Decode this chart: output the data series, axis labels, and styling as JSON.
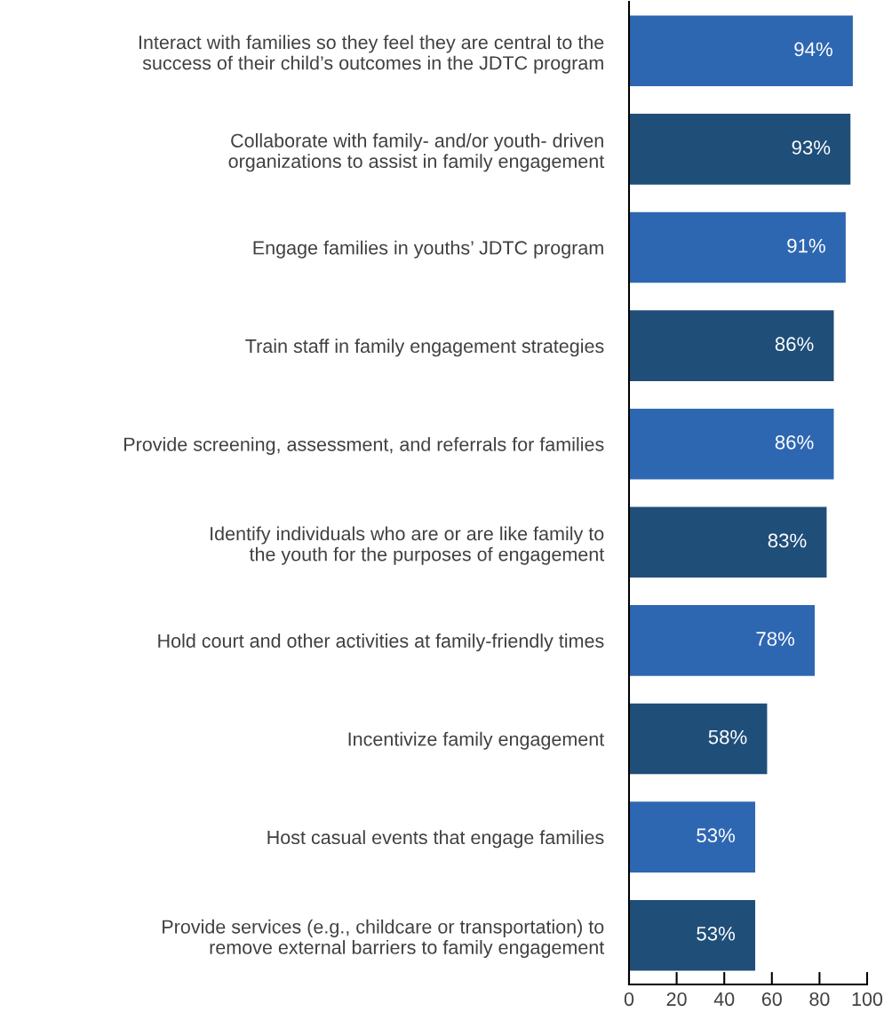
{
  "chart_data": {
    "type": "bar",
    "orientation": "horizontal",
    "categories": [
      "Interact with families so they feel they are central to the\nsuccess of their child’s outcomes in the JDTC program",
      "Collaborate with family- and/or youth- driven\norganizations to assist in family engagement",
      "Engage families in youths’ JDTC program",
      "Train staff in family engagement strategies",
      "Provide screening, assessment, and referrals for families",
      "Identify individuals who are or are like family to\nthe youth for the purposes of engagement",
      "Hold court and other activities at family-friendly times",
      "Incentivize family engagement",
      "Host casual events that engage families",
      "Provide services (e.g., childcare or transportation) to\nremove external barriers to family engagement"
    ],
    "values": [
      94,
      93,
      91,
      86,
      86,
      83,
      78,
      58,
      53,
      53
    ],
    "value_labels": [
      "94%",
      "93%",
      "91%",
      "86%",
      "86%",
      "83%",
      "78%",
      "58%",
      "53%",
      "53%"
    ],
    "colors": [
      "#2e67b1",
      "#1f4e79",
      "#2e67b1",
      "#1f4e79",
      "#2e67b1",
      "#1f4e79",
      "#2e67b1",
      "#1f4e79",
      "#2e67b1",
      "#1f4e79"
    ],
    "xlim": [
      0,
      100
    ],
    "xticks": [
      0,
      20,
      40,
      60,
      80,
      100
    ],
    "grid": false,
    "legend": false
  }
}
